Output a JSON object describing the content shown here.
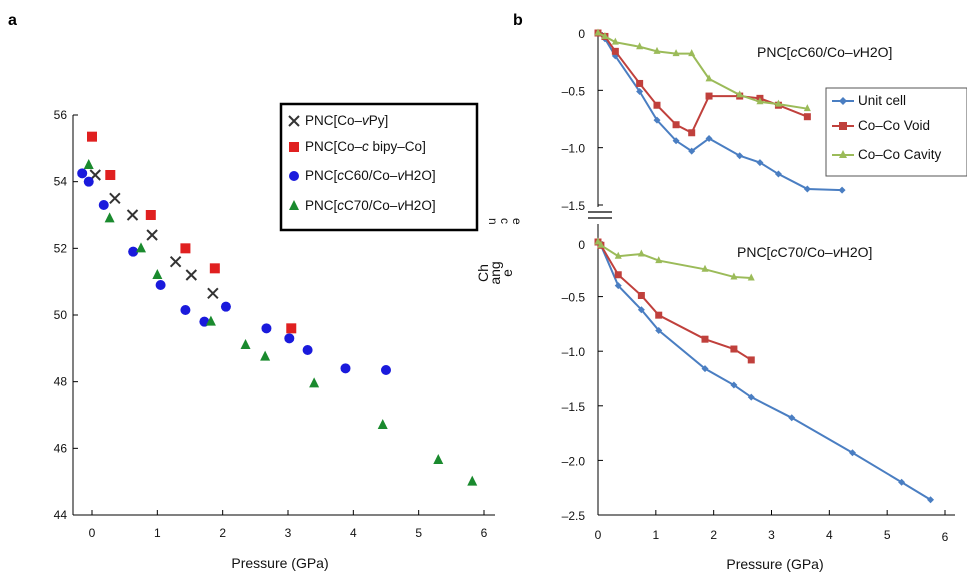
{
  "chart_data": [
    {
      "panel": "a",
      "type": "scatter",
      "xlabel": "Pressure (GPa)",
      "ylabel": "",
      "xlim": [
        -0.15,
        6.15
      ],
      "ylim": [
        44,
        56
      ],
      "xticks": [
        0,
        1,
        2,
        3,
        4,
        5,
        6
      ],
      "yticks": [
        44,
        46,
        48,
        50,
        52,
        54,
        56
      ],
      "legend_position": "top-right",
      "series": [
        {
          "name": "PNC[Co–vPy]",
          "marker": "cross",
          "color": "#333333",
          "x": [
            0.05,
            0.35,
            0.62,
            0.92,
            1.28,
            1.52,
            1.85
          ],
          "y": [
            54.2,
            53.5,
            53.0,
            52.4,
            51.6,
            51.2,
            50.65
          ]
        },
        {
          "name": "PNC[Co–c bipy–Co]",
          "marker": "square",
          "color": "#e02020",
          "x": [
            0.0,
            0.28,
            0.9,
            1.43,
            1.88,
            3.05
          ],
          "y": [
            55.35,
            54.2,
            53.0,
            52.0,
            51.4,
            49.6
          ]
        },
        {
          "name": "PNC[cC60/Co–vH2O]",
          "marker": "circle",
          "color": "#1a1adc",
          "x": [
            -0.15,
            -0.05,
            0.18,
            0.63,
            1.05,
            1.43,
            1.72,
            2.05,
            2.67,
            3.02,
            3.3,
            3.88,
            4.5
          ],
          "y": [
            54.25,
            54.0,
            53.3,
            51.9,
            50.9,
            50.15,
            49.8,
            50.25,
            49.6,
            49.3,
            48.95,
            48.4,
            48.35
          ]
        },
        {
          "name": "PNC[cC70/Co–vH2O]",
          "marker": "triangle",
          "color": "#1a8a2e",
          "x": [
            -0.05,
            0.27,
            0.75,
            1.0,
            1.82,
            2.35,
            2.65,
            3.4,
            4.45,
            5.3,
            5.82
          ],
          "y": [
            54.5,
            52.9,
            52.0,
            51.2,
            49.8,
            49.1,
            48.75,
            47.95,
            46.7,
            45.65,
            45.0
          ]
        }
      ],
      "legend": {
        "items": [
          {
            "pre": "PNC[Co–",
            "ital": "v",
            "post": "Py]"
          },
          {
            "pre": "PNC[Co–",
            "ital": "c",
            "post": " bipy–Co]"
          },
          {
            "pre": "PNC[",
            "ital": "c",
            "mid": "C60/Co–",
            "ital2": "v",
            "post": "H2O]"
          },
          {
            "pre": "PNC[",
            "ital": "c",
            "mid": "C70/Co–",
            "ital2": "v",
            "post": "H2O]"
          }
        ]
      },
      "side_label": {
        "lines": [
          "Ch",
          "ang",
          "e"
        ],
        "rotated": [
          "n",
          "c",
          "e"
        ]
      }
    },
    {
      "panel": "b",
      "type": "line",
      "xlabel": "Pressure (GPa)",
      "ylabel": "",
      "xlim": [
        0,
        6
      ],
      "xticks": [
        0,
        1,
        2,
        3,
        4,
        5,
        6
      ],
      "upper": {
        "ylim": [
          -1.5,
          0
        ],
        "yticks": [
          0,
          -0.5,
          -1.0,
          -1.5
        ],
        "ytick_labels": [
          "0",
          "–0.5",
          "–1.0",
          "–1.5"
        ],
        "annotation": {
          "pre": "PNC[",
          "ital": "c",
          "mid": "C60/Co–",
          "ital2": "v",
          "post": "H2O]"
        },
        "series": [
          {
            "name": "Unit cell",
            "marker": "diamond",
            "color": "#4a7ec2",
            "x": [
              0.0,
              0.12,
              0.3,
              0.72,
              1.02,
              1.35,
              1.62,
              1.92,
              2.45,
              2.8,
              3.12,
              3.62,
              4.22
            ],
            "y": [
              0.0,
              -0.05,
              -0.2,
              -0.51,
              -0.76,
              -0.94,
              -1.03,
              -0.92,
              -1.07,
              -1.13,
              -1.23,
              -1.36,
              -1.37
            ]
          },
          {
            "name": "Co–Co Void",
            "marker": "square",
            "color": "#c0403c",
            "x": [
              0.0,
              0.12,
              0.3,
              0.72,
              1.02,
              1.35,
              1.62,
              1.92,
              2.45,
              2.8,
              3.12,
              3.62
            ],
            "y": [
              0.0,
              -0.03,
              -0.16,
              -0.44,
              -0.63,
              -0.8,
              -0.87,
              -0.55,
              -0.55,
              -0.57,
              -0.63,
              -0.73
            ]
          },
          {
            "name": "Co–Co Cavity",
            "marker": "triangle",
            "color": "#9bbb59",
            "x": [
              0.0,
              0.12,
              0.3,
              0.72,
              1.02,
              1.35,
              1.62,
              1.92,
              2.45,
              2.8,
              3.12,
              3.62
            ],
            "y": [
              0.0,
              -0.03,
              -0.08,
              -0.12,
              -0.16,
              -0.18,
              -0.18,
              -0.4,
              -0.54,
              -0.6,
              -0.62,
              -0.66
            ]
          }
        ]
      },
      "lower": {
        "ylim": [
          -2.5,
          0
        ],
        "yticks": [
          0,
          -0.5,
          -1.0,
          -1.5,
          -2.0,
          -2.5
        ],
        "ytick_labels": [
          "0",
          "–0.5",
          "–1.0",
          "–1.5",
          "–2.0",
          "–2.5"
        ],
        "annotation": {
          "pre": "PNC[",
          "ital": "c",
          "mid": "C70/Co–",
          "ital2": "v",
          "post": "H2O]"
        },
        "series": [
          {
            "name": "Unit cell",
            "marker": "diamond",
            "color": "#4a7ec2",
            "x": [
              0.0,
              0.05,
              0.35,
              0.75,
              1.05,
              1.85,
              2.35,
              2.65,
              3.35,
              4.4,
              5.25,
              5.75
            ],
            "y": [
              0.0,
              -0.03,
              -0.4,
              -0.62,
              -0.81,
              -1.16,
              -1.31,
              -1.42,
              -1.61,
              -1.93,
              -2.2,
              -2.36
            ]
          },
          {
            "name": "Co–Co Void",
            "marker": "square",
            "color": "#c0403c",
            "x": [
              0.0,
              0.05,
              0.35,
              0.75,
              1.05,
              1.85,
              2.35,
              2.65
            ],
            "y": [
              0.0,
              -0.03,
              -0.3,
              -0.49,
              -0.67,
              -0.89,
              -0.98,
              -1.08
            ]
          },
          {
            "name": "Co–Co Cavity",
            "marker": "triangle",
            "color": "#9bbb59",
            "x": [
              0.0,
              0.05,
              0.35,
              0.75,
              1.05,
              1.85,
              2.35,
              2.65
            ],
            "y": [
              0.0,
              -0.03,
              -0.13,
              -0.11,
              -0.17,
              -0.25,
              -0.32,
              -0.33
            ]
          }
        ]
      },
      "legend": {
        "position": "right",
        "items": [
          "Unit cell",
          "Co–Co Void",
          "Co–Co Cavity"
        ]
      }
    }
  ]
}
